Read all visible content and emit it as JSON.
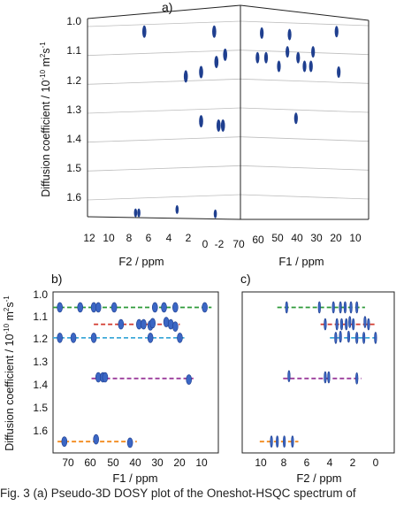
{
  "colors": {
    "spot": "#1f3f8f",
    "spot_light": "#3b66c4",
    "green": "#2e9a3a",
    "red": "#d33a2f",
    "cyan": "#3fa9d8",
    "purple": "#9b3d9b",
    "orange": "#f28a1c",
    "axis": "#222222",
    "grid": "#bdbdbd"
  },
  "caption": "Fig. 3  (a) Pseudo-3D DOSY plot of the Oneshot-HSQC spectrum of",
  "chart_data": [
    {
      "type": "scatter",
      "panel_label": "a)",
      "view": "pseudo-3D",
      "ylabel": "Diffusion coefficient / 10",
      "ylabel_exp": "-10",
      "ylabel_unit": " m",
      "ylabel_unit_exp": "2",
      "ylabel_tail": "s",
      "ylabel_tail_exp": "-1",
      "y_ticks": [
        "1.0",
        "1.1",
        "1.2",
        "1.3",
        "1.4",
        "1.5",
        "1.6"
      ],
      "ylim": [
        0.98,
        1.66
      ],
      "y_reversed": true,
      "x_f2_label": "F2 / ppm",
      "x_f2_ticks": [
        "12",
        "10",
        "8",
        "6",
        "4",
        "2",
        "0",
        "-2"
      ],
      "x_f2_range": [
        12,
        -2
      ],
      "x_f1_label": "F1 / ppm",
      "x_f1_ticks": [
        "70",
        "60",
        "50",
        "40",
        "30",
        "20",
        "10"
      ],
      "x_f1_range": [
        70,
        10
      ],
      "grid": true,
      "left_wall_points": [
        {
          "f2": 6.8,
          "d": 1.03
        },
        {
          "f2": 0.4,
          "d": 1.03
        },
        {
          "f2": -0.6,
          "d": 1.11
        },
        {
          "f2": 1.6,
          "d": 1.17
        },
        {
          "f2": 3.0,
          "d": 1.185
        },
        {
          "f2": 0.2,
          "d": 1.135
        },
        {
          "f2": 1.6,
          "d": 1.34
        },
        {
          "f2": 0.0,
          "d": 1.355
        },
        {
          "f2": -0.4,
          "d": 1.355
        }
      ],
      "right_wall_points": [
        {
          "f1": 60,
          "d": 1.035
        },
        {
          "f1": 47,
          "d": 1.04
        },
        {
          "f1": 25,
          "d": 1.03
        },
        {
          "f1": 62,
          "d": 1.12
        },
        {
          "f1": 58,
          "d": 1.12
        },
        {
          "f1": 48,
          "d": 1.1
        },
        {
          "f1": 43,
          "d": 1.12
        },
        {
          "f1": 36,
          "d": 1.1
        },
        {
          "f1": 37,
          "d": 1.15
        },
        {
          "f1": 52,
          "d": 1.15
        },
        {
          "f1": 40,
          "d": 1.15
        },
        {
          "f1": 24,
          "d": 1.17
        },
        {
          "f1": 44,
          "d": 1.33
        }
      ],
      "floor_points": [
        {
          "f2": 7.6,
          "d": 1.66
        },
        {
          "f2": 7.3,
          "d": 1.66
        },
        {
          "f2": 3.8,
          "d": 1.645
        },
        {
          "f2": 0.3,
          "d": 1.665
        }
      ]
    },
    {
      "type": "scatter",
      "panel_label": "b)",
      "xlabel": "F1 / ppm",
      "x_ticks": [
        "70",
        "60",
        "50",
        "40",
        "30",
        "20",
        "10"
      ],
      "xlim": [
        78,
        5
      ],
      "ylabel": "Diffusion coefficient / 10",
      "ylabel_exp": "-10",
      "ylabel_unit": " m",
      "ylabel_unit_exp": "2",
      "ylabel_tail": "s",
      "ylabel_tail_exp": "-1",
      "y_ticks": [
        "1.0",
        "1.1",
        "1.2",
        "1.3",
        "1.4",
        "1.5",
        "1.6"
      ],
      "ylim": [
        0.98,
        1.675
      ],
      "y_reversed": true,
      "series": [
        {
          "color_key": "green",
          "d": 1.045,
          "range": [
            78,
            8
          ],
          "points": [
            {
              "x": 75,
              "y": 1.045
            },
            {
              "x": 66,
              "y": 1.045
            },
            {
              "x": 60,
              "y": 1.045
            },
            {
              "x": 58,
              "y": 1.045
            },
            {
              "x": 51,
              "y": 1.045
            },
            {
              "x": 33,
              "y": 1.045
            },
            {
              "x": 29,
              "y": 1.045
            },
            {
              "x": 24,
              "y": 1.045
            },
            {
              "x": 11,
              "y": 1.045
            }
          ]
        },
        {
          "color_key": "red",
          "d": 1.12,
          "range": [
            60,
            22
          ],
          "points": [
            {
              "x": 48,
              "y": 1.12
            },
            {
              "x": 40,
              "y": 1.12
            },
            {
              "x": 38,
              "y": 1.12
            },
            {
              "x": 35,
              "y": 1.125
            },
            {
              "x": 34,
              "y": 1.115
            },
            {
              "x": 28,
              "y": 1.11
            },
            {
              "x": 26,
              "y": 1.12
            },
            {
              "x": 24,
              "y": 1.13
            }
          ]
        },
        {
          "color_key": "cyan",
          "d": 1.18,
          "range": [
            78,
            20
          ],
          "points": [
            {
              "x": 75,
              "y": 1.18
            },
            {
              "x": 69,
              "y": 1.18
            },
            {
              "x": 60,
              "y": 1.18
            },
            {
              "x": 35,
              "y": 1.18
            },
            {
              "x": 22,
              "y": 1.18
            }
          ]
        },
        {
          "color_key": "purple",
          "d": 1.36,
          "range": [
            61,
            16
          ],
          "points": [
            {
              "x": 58,
              "y": 1.355
            },
            {
              "x": 56,
              "y": 1.355
            },
            {
              "x": 55,
              "y": 1.355
            },
            {
              "x": 18,
              "y": 1.365
            }
          ]
        },
        {
          "color_key": "orange",
          "d": 1.64,
          "range": [
            76,
            41
          ],
          "points": [
            {
              "x": 73,
              "y": 1.64
            },
            {
              "x": 59,
              "y": 1.63
            },
            {
              "x": 44,
              "y": 1.645
            }
          ]
        }
      ]
    },
    {
      "type": "scatter",
      "panel_label": "c)",
      "xlabel": "F2 / ppm",
      "x_ticks": [
        "10",
        "8",
        "6",
        "4",
        "2",
        "0"
      ],
      "xlim": [
        12,
        -1
      ],
      "ylim": [
        0.98,
        1.675
      ],
      "y_reversed": true,
      "series": [
        {
          "color_key": "green",
          "d": 1.045,
          "range": [
            9,
            1.5
          ],
          "points": [
            {
              "x": 8.2,
              "y": 1.045
            },
            {
              "x": 5.4,
              "y": 1.045
            },
            {
              "x": 4.2,
              "y": 1.045
            },
            {
              "x": 3.6,
              "y": 1.045
            },
            {
              "x": 3.2,
              "y": 1.045
            },
            {
              "x": 2.7,
              "y": 1.045
            },
            {
              "x": 2.2,
              "y": 1.045
            }
          ]
        },
        {
          "color_key": "red",
          "d": 1.12,
          "range": [
            5.3,
            0.6
          ],
          "points": [
            {
              "x": 4.9,
              "y": 1.12
            },
            {
              "x": 3.9,
              "y": 1.12
            },
            {
              "x": 3.5,
              "y": 1.12
            },
            {
              "x": 3.1,
              "y": 1.12
            },
            {
              "x": 2.8,
              "y": 1.11
            },
            {
              "x": 2.5,
              "y": 1.12
            },
            {
              "x": 1.5,
              "y": 1.11
            },
            {
              "x": 1.2,
              "y": 1.12
            }
          ]
        },
        {
          "color_key": "cyan",
          "d": 1.18,
          "range": [
            4.5,
            0.3
          ],
          "points": [
            {
              "x": 4.0,
              "y": 1.18
            },
            {
              "x": 3.6,
              "y": 1.175
            },
            {
              "x": 2.9,
              "y": 1.175
            },
            {
              "x": 2.2,
              "y": 1.18
            },
            {
              "x": 1.6,
              "y": 1.18
            },
            {
              "x": 0.6,
              "y": 1.18
            }
          ]
        },
        {
          "color_key": "purple",
          "d": 1.36,
          "range": [
            8.5,
            1.8
          ],
          "points": [
            {
              "x": 8.0,
              "y": 1.35
            },
            {
              "x": 4.9,
              "y": 1.355
            },
            {
              "x": 4.6,
              "y": 1.355
            },
            {
              "x": 2.2,
              "y": 1.36
            }
          ]
        },
        {
          "color_key": "orange",
          "d": 1.64,
          "range": [
            10.5,
            7.2
          ],
          "points": [
            {
              "x": 9.5,
              "y": 1.64
            },
            {
              "x": 9.0,
              "y": 1.64
            },
            {
              "x": 8.4,
              "y": 1.64
            },
            {
              "x": 7.7,
              "y": 1.64
            }
          ]
        }
      ]
    }
  ]
}
